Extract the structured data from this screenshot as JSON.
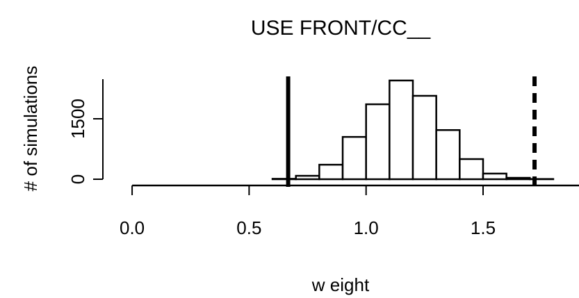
{
  "chart_data": {
    "type": "histogram",
    "title": "USE FRONT/CC__",
    "xlabel": "w eight",
    "ylabel": "# of simulations",
    "bins": [
      0.6,
      0.7,
      0.8,
      0.9,
      1.0,
      1.1,
      1.2,
      1.3,
      1.4,
      1.5,
      1.6,
      1.7,
      1.8
    ],
    "values": [
      10,
      85,
      360,
      1050,
      1860,
      2450,
      2070,
      1220,
      500,
      140,
      35,
      5
    ],
    "color": "#ffffff",
    "edgecolor": "#000000",
    "xlim": [
      -0.125,
      1.91
    ],
    "ylim": [
      -155,
      2724
    ],
    "xticks": [
      {
        "value": 0,
        "label": "0.0"
      },
      0.5,
      {
        "value": 1,
        "label": "1.0"
      },
      1.5
    ],
    "yticks": [
      0,
      1500
    ],
    "vlines": [
      {
        "value": 0.667,
        "style": "solid"
      },
      {
        "value": 1.72,
        "style": "dashed"
      }
    ],
    "grid": false
  }
}
